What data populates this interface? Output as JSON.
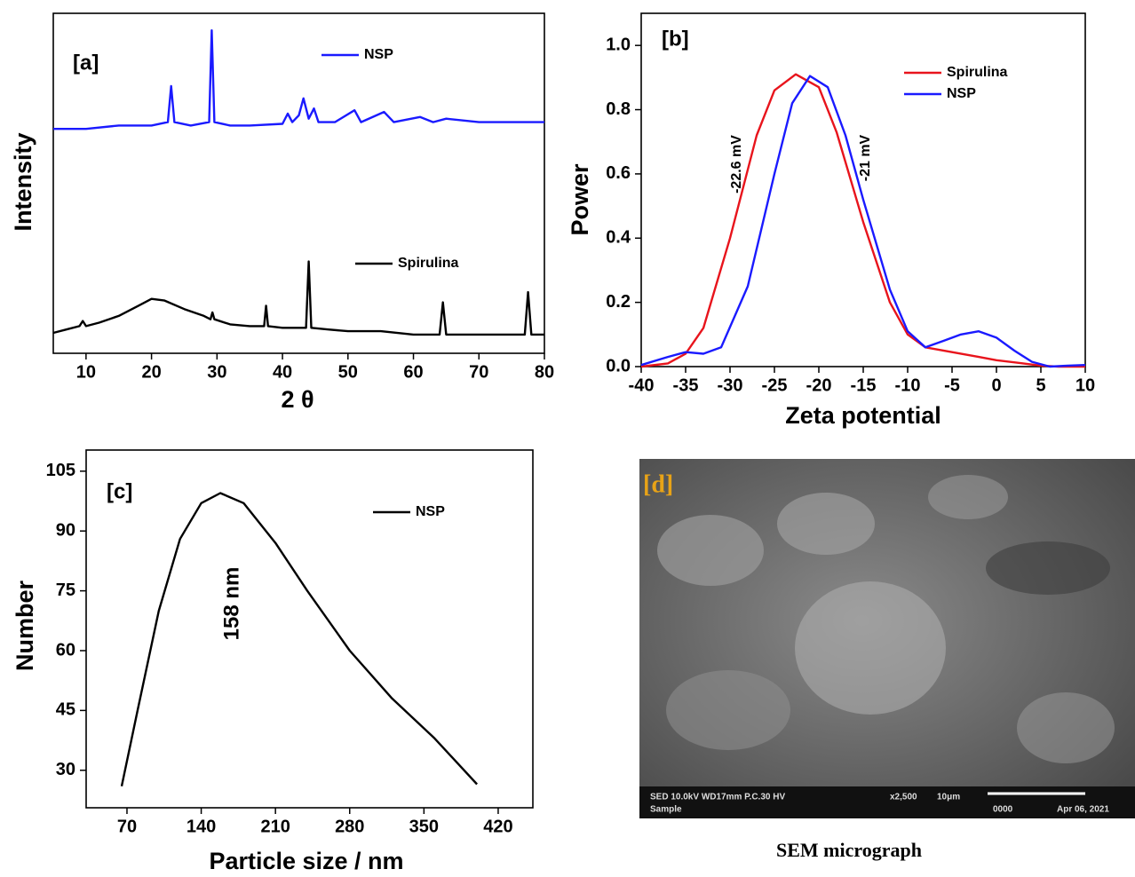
{
  "chart_data": [
    {
      "type": "line",
      "panel_label": "[a]",
      "xlabel": "2 θ",
      "ylabel": "Intensity",
      "xlim": [
        5,
        80
      ],
      "xticks": [
        10,
        20,
        30,
        40,
        50,
        60,
        70,
        80
      ],
      "ylim": [
        0,
        100
      ],
      "series": [
        {
          "name": "NSP",
          "color": "#1a1aff",
          "x": [
            5,
            10,
            15,
            20,
            22.5,
            23,
            23.5,
            26,
            28.8,
            29.2,
            29.6,
            32,
            35,
            40,
            40.8,
            41.5,
            42.5,
            43.2,
            44,
            44.8,
            45.5,
            48,
            51,
            52,
            55.5,
            57,
            61,
            63,
            65,
            70,
            75,
            80
          ],
          "values": [
            66,
            66,
            67,
            67,
            68,
            78.6,
            68,
            67,
            68,
            95,
            68,
            67,
            67,
            67.5,
            70.5,
            68,
            70,
            75,
            69,
            72,
            68,
            68,
            71.5,
            68,
            71,
            68,
            69.5,
            68,
            69,
            68,
            68,
            68
          ]
        },
        {
          "name": "Spirulina",
          "color": "#000000",
          "x": [
            5,
            7,
            9,
            9.5,
            10,
            12,
            15,
            18,
            20,
            22,
            25,
            28,
            29,
            29.3,
            29.6,
            32,
            35,
            37.2,
            37.5,
            37.8,
            40,
            43.6,
            44,
            44.4,
            47,
            50,
            55,
            60,
            64,
            64.5,
            65,
            68,
            72,
            77,
            77.5,
            78,
            80
          ],
          "values": [
            6,
            7,
            8,
            9.5,
            8,
            9,
            11,
            14,
            16,
            15.5,
            13,
            11,
            10,
            12,
            10,
            8.5,
            8,
            8,
            14,
            8,
            7.5,
            7.5,
            27,
            7.5,
            7,
            6.5,
            6.5,
            5.5,
            5.5,
            15,
            5.5,
            5.5,
            5.5,
            5.5,
            18,
            5.5,
            5.5
          ]
        }
      ]
    },
    {
      "type": "line",
      "panel_label": "[b]",
      "xlabel": "Zeta potential",
      "ylabel": "Power",
      "annotations": [
        "-22.6 mV",
        "-21 mV"
      ],
      "legend": "upper right",
      "xlim": [
        -40,
        10
      ],
      "xticks": [
        -40,
        -35,
        -30,
        -25,
        -20,
        -15,
        -10,
        -5,
        0,
        5,
        10
      ],
      "ylim": [
        0,
        1.1
      ],
      "yticks": [
        {
          "value": 0,
          "label": "0.0"
        },
        0.2,
        0.4,
        0.6,
        0.8,
        {
          "value": 1,
          "label": "1.0"
        }
      ],
      "series": [
        {
          "name": "Spirulina",
          "color": "#e8141c",
          "x": [
            -40,
            -37,
            -35,
            -33,
            -30,
            -27,
            -25,
            -22.6,
            -20,
            -18,
            -15,
            -12,
            -10,
            -8,
            -5,
            -2,
            0,
            3,
            5,
            7,
            10
          ],
          "values": [
            0,
            0.01,
            0.04,
            0.12,
            0.4,
            0.72,
            0.86,
            0.91,
            0.87,
            0.73,
            0.45,
            0.2,
            0.1,
            0.06,
            0.045,
            0.03,
            0.02,
            0.01,
            0.003,
            0,
            0
          ]
        },
        {
          "name": "NSP",
          "color": "#1a1aff",
          "x": [
            -40,
            -37,
            -35,
            -33,
            -31,
            -28,
            -25,
            -23,
            -21,
            -19,
            -17,
            -15,
            -12,
            -10,
            -8,
            -6,
            -4,
            -2,
            0,
            2,
            4,
            6,
            8,
            10
          ],
          "values": [
            0.005,
            0.03,
            0.045,
            0.04,
            0.06,
            0.25,
            0.6,
            0.82,
            0.905,
            0.87,
            0.72,
            0.52,
            0.24,
            0.11,
            0.06,
            0.08,
            0.1,
            0.11,
            0.09,
            0.05,
            0.015,
            0,
            0.003,
            0.005
          ]
        }
      ]
    },
    {
      "type": "line",
      "panel_label": "[c]",
      "xlabel": "Particle size / nm",
      "ylabel": "Number",
      "annotations": [
        "158 nm"
      ],
      "xlim": [
        31.5,
        452.7
      ],
      "xticks": [
        70,
        140,
        210,
        280,
        350,
        420
      ],
      "ylim": [
        20.6,
        110.3
      ],
      "yticks": [
        30,
        45,
        60,
        75,
        90,
        105
      ],
      "series": [
        {
          "name": "NSP",
          "color": "#000000",
          "x": [
            65,
            80,
            100,
            120,
            140,
            158,
            180,
            210,
            240,
            280,
            320,
            360,
            400
          ],
          "values": [
            26,
            45,
            70,
            88,
            97,
            99.5,
            97,
            87,
            75,
            60,
            48,
            38,
            26.5
          ]
        }
      ]
    }
  ],
  "micrograph": {
    "label": "[d]",
    "info": "SED 10.0kV WD17mm P.C.30 HV",
    "magnification": "x2,500",
    "scale": "10μm",
    "sample": "Sample",
    "code": "0000",
    "date": "Apr 06, 2021",
    "caption": "SEM micrograph"
  }
}
